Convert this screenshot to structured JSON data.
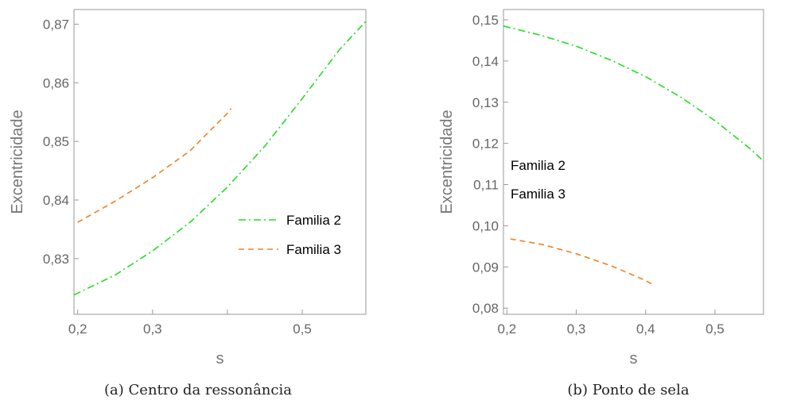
{
  "chart_data": [
    {
      "type": "line",
      "caption": "(a) Centro da ressonância",
      "xlabel": "s",
      "ylabel": "Excentricidade",
      "xlim": [
        0.195,
        0.585
      ],
      "ylim": [
        0.8205,
        0.8725
      ],
      "xticks": [
        0.2,
        0.3,
        0.4,
        0.5
      ],
      "xtick_labels": [
        "0,2",
        "0,3",
        "",
        "0,5"
      ],
      "yticks": [
        0.83,
        0.84,
        0.85,
        0.86,
        0.87
      ],
      "ytick_labels": [
        "0,83",
        "0,84",
        "0,85",
        "0,86",
        "0,87"
      ],
      "legend": {
        "placement": "bottom-right"
      },
      "series": [
        {
          "name": "Familia 2",
          "color": "#22dd22",
          "style": "dash-dot",
          "x": [
            0.195,
            0.25,
            0.3,
            0.35,
            0.4,
            0.45,
            0.5,
            0.55,
            0.585
          ],
          "y": [
            0.8238,
            0.8272,
            0.8313,
            0.8362,
            0.8422,
            0.8492,
            0.8573,
            0.8657,
            0.8705
          ]
        },
        {
          "name": "Familia 3",
          "color": "#f08020",
          "style": "dashed",
          "x": [
            0.2,
            0.25,
            0.3,
            0.35,
            0.4,
            0.405
          ],
          "y": [
            0.8362,
            0.8398,
            0.8438,
            0.8484,
            0.8548,
            0.8556
          ]
        }
      ]
    },
    {
      "type": "line",
      "caption": "(b) Ponto de sela",
      "xlabel": "s",
      "ylabel": "Excentricidade",
      "xlim": [
        0.195,
        0.57
      ],
      "ylim": [
        0.0785,
        0.1525
      ],
      "xticks": [
        0.2,
        0.3,
        0.4,
        0.5
      ],
      "xtick_labels": [
        "0,2",
        "0,3",
        "0,4",
        "0,5"
      ],
      "yticks": [
        0.08,
        0.09,
        0.1,
        0.11,
        0.12,
        0.13,
        0.14,
        0.15
      ],
      "ytick_labels": [
        "0,08",
        "0,09",
        "0,10",
        "0,11",
        "0,12",
        "0,13",
        "0,14",
        "0,15"
      ],
      "legend": {
        "placement": "middle-left"
      },
      "series": [
        {
          "name": "Familia 2",
          "color": "#22dd22",
          "style": "dash-dot",
          "x": [
            0.195,
            0.25,
            0.3,
            0.35,
            0.4,
            0.45,
            0.5,
            0.55,
            0.57
          ],
          "y": [
            0.1485,
            0.1462,
            0.1436,
            0.1402,
            0.1362,
            0.1313,
            0.1255,
            0.1188,
            0.1157
          ]
        },
        {
          "name": "Familia 3",
          "color": "#f08020",
          "style": "dashed",
          "x": [
            0.205,
            0.25,
            0.3,
            0.35,
            0.4,
            0.41
          ],
          "y": [
            0.0968,
            0.0955,
            0.0932,
            0.0903,
            0.0867,
            0.0857
          ]
        }
      ]
    }
  ]
}
